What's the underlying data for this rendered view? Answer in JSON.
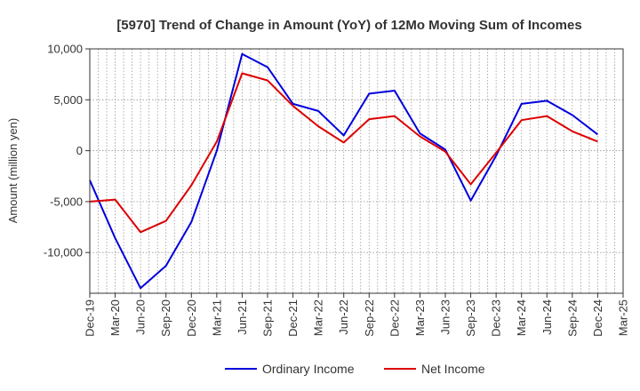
{
  "chart_data": {
    "type": "line",
    "title": "[5970]  Trend of Change in Amount (YoY) of 12Mo Moving Sum of Incomes",
    "xlabel": "",
    "ylabel": "Amount (million yen)",
    "categories": [
      "Dec-19",
      "Mar-20",
      "Jun-20",
      "Sep-20",
      "Dec-20",
      "Mar-21",
      "Jun-21",
      "Sep-21",
      "Dec-21",
      "Mar-22",
      "Jun-22",
      "Sep-22",
      "Dec-22",
      "Mar-23",
      "Jun-23",
      "Sep-23",
      "Dec-23",
      "Mar-24",
      "Jun-24",
      "Sep-24",
      "Dec-24",
      "Mar-25"
    ],
    "ylim": [
      -14000,
      10000
    ],
    "yticks": [
      10000,
      5000,
      0,
      -5000,
      -10000
    ],
    "ytick_labels": [
      "10,000",
      "5,000",
      "0",
      "-5,000",
      "-10,000"
    ],
    "grid": true,
    "legend_position": "bottom",
    "series": [
      {
        "name": "Ordinary Income",
        "color": "#0000dd",
        "values": [
          -2900,
          -8600,
          -13500,
          -11300,
          -7000,
          0,
          9500,
          8200,
          4600,
          3900,
          1500,
          5600,
          5900,
          1700,
          100,
          -4900,
          -500,
          4600,
          4900,
          3500,
          1600,
          null
        ]
      },
      {
        "name": "Net Income",
        "color": "#dd0000",
        "values": [
          -5000,
          -4800,
          -8000,
          -6900,
          -3400,
          900,
          7600,
          6900,
          4400,
          2400,
          800,
          3100,
          3400,
          1400,
          -100,
          -3300,
          -200,
          3000,
          3400,
          1900,
          900,
          null
        ]
      }
    ]
  }
}
